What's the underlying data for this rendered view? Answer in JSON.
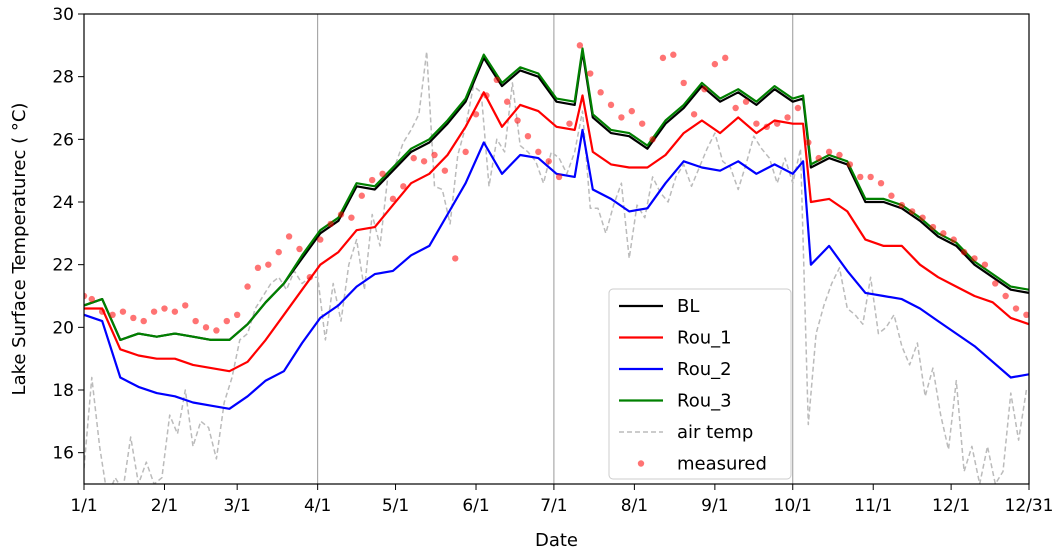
{
  "chart_data": {
    "type": "line",
    "title": "",
    "xlabel": "Date",
    "ylabel": "Lake Surface Temperaturec ($^\\circ$C)",
    "ylabel_display": "Lake Surface Temperaturec ( °C)",
    "xlim": [
      1,
      365
    ],
    "ylim": [
      15,
      30
    ],
    "x_ticks": [
      {
        "day": 1,
        "label": "1/1"
      },
      {
        "day": 32,
        "label": "2/1"
      },
      {
        "day": 60,
        "label": "3/1"
      },
      {
        "day": 91,
        "label": "4/1"
      },
      {
        "day": 121,
        "label": "5/1"
      },
      {
        "day": 152,
        "label": "6/1"
      },
      {
        "day": 182,
        "label": "7/1"
      },
      {
        "day": 213,
        "label": "8/1"
      },
      {
        "day": 244,
        "label": "9/1"
      },
      {
        "day": 274,
        "label": "10/1"
      },
      {
        "day": 305,
        "label": "11/1"
      },
      {
        "day": 335,
        "label": "12/1"
      },
      {
        "day": 365,
        "label": "12/31"
      }
    ],
    "y_ticks": [
      16,
      18,
      20,
      22,
      24,
      26,
      28,
      30
    ],
    "vertical_lines_days": [
      91,
      182,
      274
    ],
    "legend_position": "lower-right-center",
    "series": [
      {
        "name": "BL",
        "color": "#000000",
        "style": "solid",
        "x": [
          1,
          8,
          15,
          22,
          29,
          36,
          43,
          50,
          57,
          64,
          71,
          78,
          85,
          92,
          99,
          106,
          113,
          120,
          127,
          134,
          141,
          148,
          155,
          162,
          169,
          176,
          183,
          190,
          193,
          197,
          204,
          211,
          218,
          225,
          232,
          239,
          246,
          253,
          260,
          267,
          274,
          278,
          281,
          288,
          295,
          302,
          309,
          316,
          323,
          330,
          337,
          344,
          351,
          358,
          365
        ],
        "y": [
          20.7,
          20.9,
          19.6,
          19.8,
          19.7,
          19.8,
          19.7,
          19.6,
          19.6,
          20.1,
          20.8,
          21.4,
          22.2,
          23.0,
          23.4,
          24.5,
          24.4,
          25.0,
          25.6,
          25.9,
          26.5,
          27.2,
          28.6,
          27.7,
          28.2,
          28.0,
          27.2,
          27.1,
          28.8,
          26.7,
          26.2,
          26.1,
          25.7,
          26.5,
          27.0,
          27.7,
          27.2,
          27.5,
          27.1,
          27.6,
          27.2,
          27.3,
          25.1,
          25.4,
          25.2,
          24.0,
          24.0,
          23.8,
          23.4,
          22.9,
          22.6,
          22.0,
          21.6,
          21.2,
          21.1
        ]
      },
      {
        "name": "Rou_1",
        "color": "#ff0000",
        "style": "solid",
        "x": [
          1,
          8,
          15,
          22,
          29,
          36,
          43,
          50,
          57,
          64,
          71,
          78,
          85,
          92,
          99,
          106,
          113,
          120,
          127,
          134,
          141,
          148,
          155,
          162,
          169,
          176,
          183,
          190,
          193,
          197,
          204,
          211,
          218,
          225,
          232,
          239,
          246,
          253,
          260,
          267,
          274,
          278,
          281,
          288,
          295,
          302,
          309,
          316,
          323,
          330,
          337,
          344,
          351,
          358,
          365
        ],
        "y": [
          20.6,
          20.6,
          19.3,
          19.1,
          19.0,
          19.0,
          18.8,
          18.7,
          18.6,
          18.9,
          19.6,
          20.4,
          21.2,
          22.0,
          22.4,
          23.1,
          23.2,
          23.9,
          24.6,
          24.9,
          25.5,
          26.4,
          27.5,
          26.4,
          27.1,
          26.9,
          26.4,
          26.3,
          27.4,
          25.6,
          25.2,
          25.1,
          25.1,
          25.5,
          26.2,
          26.6,
          26.2,
          26.7,
          26.2,
          26.6,
          26.5,
          26.5,
          24.0,
          24.1,
          23.7,
          22.8,
          22.6,
          22.6,
          22.0,
          21.6,
          21.3,
          21.0,
          20.8,
          20.3,
          20.1
        ]
      },
      {
        "name": "Rou_2",
        "color": "#0000ff",
        "style": "solid",
        "x": [
          1,
          8,
          15,
          22,
          29,
          36,
          43,
          50,
          57,
          64,
          71,
          78,
          85,
          92,
          99,
          106,
          113,
          120,
          127,
          134,
          141,
          148,
          155,
          162,
          169,
          176,
          183,
          190,
          193,
          197,
          204,
          211,
          218,
          225,
          232,
          239,
          246,
          253,
          260,
          267,
          274,
          278,
          281,
          288,
          295,
          302,
          309,
          316,
          323,
          330,
          337,
          344,
          351,
          358,
          365
        ],
        "y": [
          20.4,
          20.2,
          18.4,
          18.1,
          17.9,
          17.8,
          17.6,
          17.5,
          17.4,
          17.8,
          18.3,
          18.6,
          19.5,
          20.3,
          20.7,
          21.3,
          21.7,
          21.8,
          22.3,
          22.6,
          23.6,
          24.6,
          25.9,
          24.9,
          25.5,
          25.4,
          24.9,
          24.8,
          26.3,
          24.4,
          24.1,
          23.7,
          23.8,
          24.6,
          25.3,
          25.1,
          25.0,
          25.3,
          24.9,
          25.2,
          24.9,
          25.3,
          22.0,
          22.6,
          21.8,
          21.1,
          21.0,
          20.9,
          20.6,
          20.2,
          19.8,
          19.4,
          18.9,
          18.4,
          18.5
        ]
      },
      {
        "name": "Rou_3",
        "color": "#008000",
        "style": "solid",
        "x": [
          1,
          8,
          15,
          22,
          29,
          36,
          43,
          50,
          57,
          64,
          71,
          78,
          85,
          92,
          99,
          106,
          113,
          120,
          127,
          134,
          141,
          148,
          155,
          162,
          169,
          176,
          183,
          190,
          193,
          197,
          204,
          211,
          218,
          225,
          232,
          239,
          246,
          253,
          260,
          267,
          274,
          278,
          281,
          288,
          295,
          302,
          309,
          316,
          323,
          330,
          337,
          344,
          351,
          358,
          365
        ],
        "y": [
          20.7,
          20.9,
          19.6,
          19.8,
          19.7,
          19.8,
          19.7,
          19.6,
          19.6,
          20.1,
          20.8,
          21.4,
          22.3,
          23.1,
          23.5,
          24.6,
          24.5,
          25.1,
          25.7,
          26.0,
          26.6,
          27.3,
          28.7,
          27.8,
          28.3,
          28.1,
          27.3,
          27.2,
          28.9,
          26.8,
          26.3,
          26.2,
          25.8,
          26.6,
          27.1,
          27.8,
          27.3,
          27.6,
          27.2,
          27.7,
          27.3,
          27.4,
          25.2,
          25.5,
          25.3,
          24.1,
          24.1,
          23.9,
          23.5,
          23.0,
          22.7,
          22.1,
          21.7,
          21.3,
          21.2
        ]
      },
      {
        "name": "air temp",
        "color": "#bbbbbb",
        "style": "dashed",
        "x": [
          1,
          4,
          7,
          10,
          13,
          16,
          19,
          22,
          25,
          28,
          31,
          34,
          37,
          40,
          43,
          46,
          49,
          52,
          55,
          58,
          61,
          64,
          67,
          70,
          73,
          76,
          79,
          82,
          85,
          88,
          91,
          94,
          97,
          100,
          103,
          106,
          109,
          112,
          115,
          118,
          121,
          124,
          127,
          130,
          133,
          136,
          139,
          142,
          145,
          148,
          151,
          154,
          157,
          160,
          163,
          166,
          169,
          172,
          175,
          178,
          181,
          184,
          187,
          190,
          193,
          196,
          199,
          202,
          205,
          208,
          211,
          214,
          217,
          220,
          223,
          226,
          229,
          232,
          235,
          238,
          241,
          244,
          247,
          250,
          253,
          256,
          259,
          262,
          265,
          268,
          271,
          274,
          277,
          280,
          283,
          286,
          289,
          292,
          295,
          298,
          301,
          304,
          307,
          310,
          313,
          316,
          319,
          322,
          325,
          328,
          331,
          334,
          337,
          340,
          343,
          346,
          349,
          352,
          355,
          358,
          361,
          364
        ],
        "y": [
          15.5,
          18.4,
          16.2,
          14.6,
          15.2,
          14.8,
          16.5,
          15.0,
          15.7,
          15.0,
          15.2,
          17.2,
          16.6,
          18.0,
          16.2,
          17.0,
          16.8,
          15.8,
          17.6,
          18.4,
          19.6,
          19.8,
          20.6,
          21.0,
          21.4,
          21.6,
          21.2,
          21.8,
          21.4,
          21.6,
          21.6,
          19.6,
          21.4,
          20.2,
          22.0,
          22.8,
          21.2,
          23.6,
          22.6,
          24.8,
          25.2,
          25.9,
          26.3,
          26.8,
          28.8,
          24.5,
          24.4,
          23.3,
          25.5,
          26.4,
          27.7,
          27.5,
          24.5,
          26.0,
          25.6,
          27.8,
          25.8,
          25.6,
          25.3,
          24.6,
          25.6,
          25.4,
          24.9,
          25.6,
          26.9,
          23.8,
          23.8,
          23.0,
          23.9,
          24.6,
          22.2,
          23.9,
          23.5,
          24.8,
          24.3,
          24.0,
          24.8,
          25.2,
          24.5,
          25.1,
          25.7,
          26.2,
          25.3,
          25.1,
          24.4,
          25.2,
          26.1,
          25.7,
          25.4,
          24.6,
          25.4,
          24.6,
          25.7,
          16.9,
          19.8,
          20.7,
          21.4,
          21.9,
          20.6,
          20.4,
          20.1,
          21.6,
          19.8,
          20.0,
          20.4,
          19.4,
          18.8,
          19.5,
          17.8,
          18.7,
          17.2,
          16.1,
          18.3,
          15.4,
          16.2,
          15.0,
          16.2,
          15.0,
          15.4,
          17.9,
          16.4,
          18.0
        ]
      },
      {
        "name": "measured",
        "color": "#ff0000",
        "style": "markers",
        "x": [
          1,
          4,
          8,
          12,
          16,
          20,
          24,
          28,
          32,
          36,
          40,
          44,
          48,
          52,
          56,
          60,
          64,
          68,
          72,
          76,
          80,
          84,
          88,
          92,
          96,
          100,
          104,
          108,
          112,
          116,
          120,
          124,
          128,
          132,
          136,
          140,
          144,
          148,
          152,
          156,
          160,
          164,
          168,
          172,
          176,
          180,
          184,
          188,
          192,
          196,
          200,
          204,
          208,
          212,
          216,
          220,
          224,
          228,
          232,
          236,
          240,
          244,
          248,
          252,
          256,
          260,
          264,
          268,
          272,
          276,
          280,
          284,
          288,
          292,
          296,
          300,
          304,
          308,
          312,
          316,
          320,
          324,
          328,
          332,
          336,
          340,
          344,
          348,
          352,
          356,
          360,
          364
        ],
        "y": [
          21.0,
          20.9,
          20.5,
          20.4,
          20.5,
          20.3,
          20.2,
          20.5,
          20.6,
          20.5,
          20.7,
          20.2,
          20.0,
          19.9,
          20.2,
          20.4,
          21.3,
          21.9,
          22.0,
          22.4,
          22.9,
          22.5,
          21.6,
          22.8,
          23.3,
          23.6,
          23.5,
          24.2,
          24.7,
          24.9,
          24.1,
          24.5,
          25.4,
          25.3,
          25.5,
          25.0,
          22.2,
          25.6,
          26.8,
          27.4,
          27.9,
          27.2,
          26.6,
          26.1,
          25.6,
          25.3,
          24.8,
          26.5,
          29.0,
          28.1,
          27.5,
          27.1,
          26.7,
          26.9,
          26.5,
          26.0,
          28.6,
          28.7,
          27.8,
          26.8,
          27.6,
          28.4,
          28.6,
          27.0,
          27.2,
          26.5,
          26.4,
          26.5,
          26.7,
          27.0,
          25.9,
          25.4,
          25.6,
          25.5,
          25.2,
          24.8,
          24.8,
          24.6,
          24.2,
          23.9,
          23.7,
          23.5,
          23.2,
          23.0,
          22.8,
          22.4,
          22.2,
          22.0,
          21.4,
          21.0,
          20.6,
          20.4
        ]
      }
    ]
  }
}
